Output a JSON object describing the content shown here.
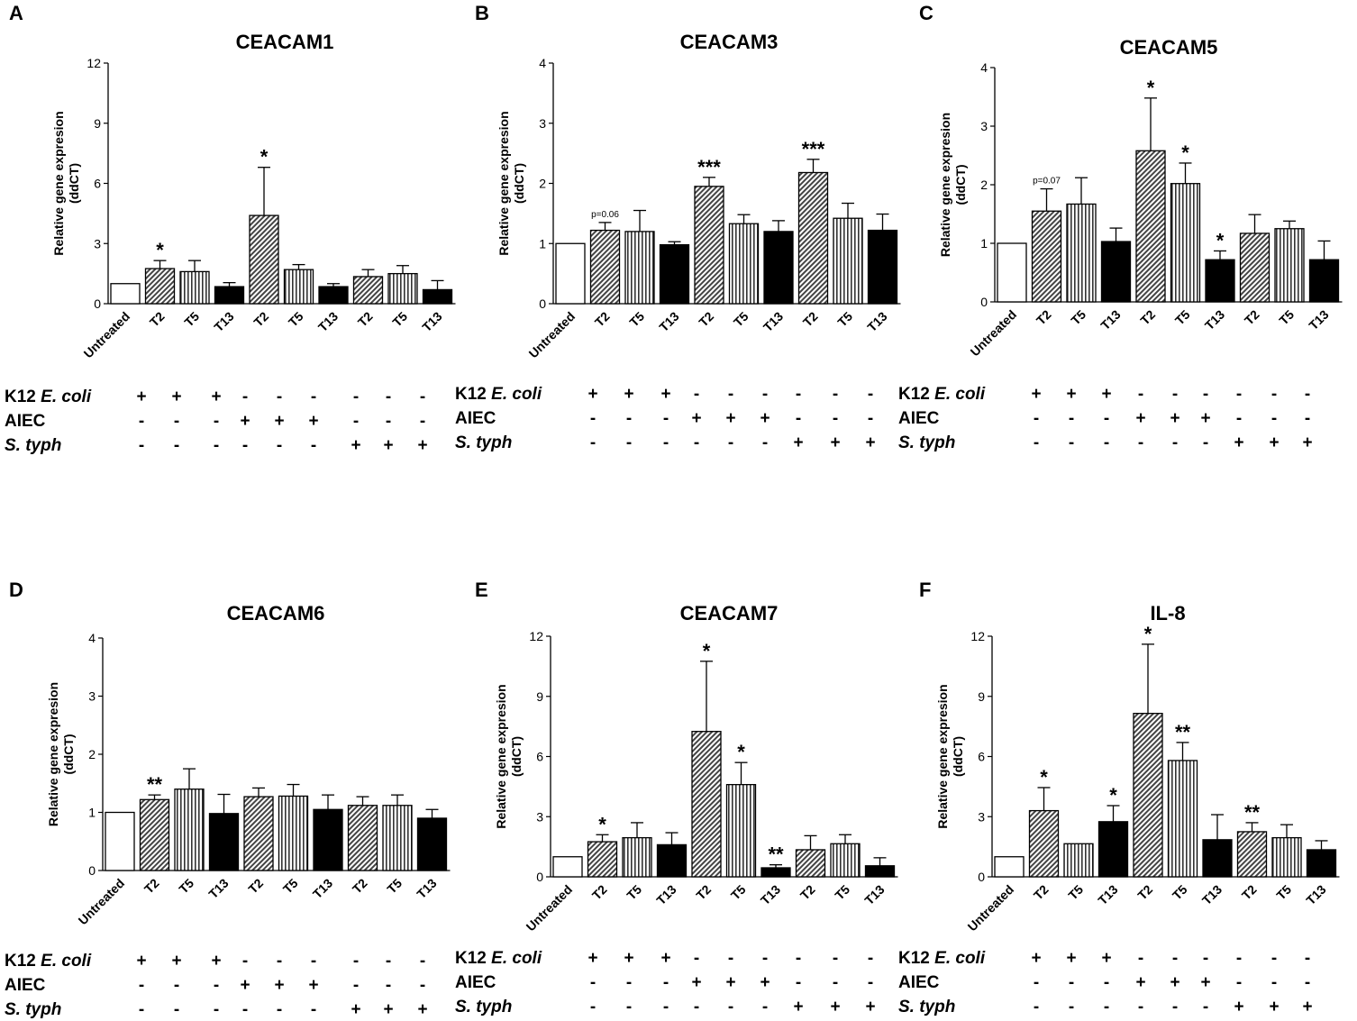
{
  "panel_labels": [
    "A",
    "B",
    "C",
    "D",
    "E",
    "F"
  ],
  "y_axis_label": [
    "Relative gene expresion",
    "(ddCT)"
  ],
  "treatment_rows": [
    {
      "name": "K12",
      "italic": "E. coli"
    },
    {
      "name": "AIEC",
      "italic": ""
    },
    {
      "name": "",
      "italic": "S. typh"
    }
  ],
  "treatment_matrix": [
    [
      "+",
      "+",
      "+",
      "-",
      "-",
      "-",
      "-",
      "-",
      "-"
    ],
    [
      "-",
      "-",
      "-",
      "+",
      "+",
      "+",
      "-",
      "-",
      "-"
    ],
    [
      "-",
      "-",
      "-",
      "-",
      "-",
      "-",
      "+",
      "+",
      "+"
    ]
  ],
  "colors": {
    "solid": "#000000",
    "empty": "#ffffff",
    "bar_stroke": "#000000"
  },
  "chart_data": [
    {
      "panel": "A",
      "type": "bar",
      "title": "CEACAM1",
      "categories": [
        "Untreated",
        "T2",
        "T5",
        "T13",
        "T2",
        "T5",
        "T13",
        "T2",
        "T5",
        "T13"
      ],
      "fills": [
        "empty",
        "hatch",
        "vstripe",
        "solid",
        "hatch",
        "vstripe",
        "solid",
        "hatch",
        "vstripe",
        "solid"
      ],
      "values": [
        1.0,
        1.75,
        1.6,
        0.85,
        4.4,
        1.7,
        0.85,
        1.35,
        1.5,
        0.7
      ],
      "errors": [
        0,
        0.4,
        0.55,
        0.2,
        2.4,
        0.25,
        0.15,
        0.35,
        0.4,
        0.45
      ],
      "annotations": [
        "",
        "*",
        "",
        "",
        "*",
        "",
        "",
        "",
        "",
        ""
      ],
      "ylim": [
        0,
        12
      ],
      "yticks": [
        "0",
        "3",
        "6",
        "9",
        "12"
      ]
    },
    {
      "panel": "B",
      "type": "bar",
      "title": "CEACAM3",
      "categories": [
        "Untreated",
        "T2",
        "T5",
        "T13",
        "T2",
        "T5",
        "T13",
        "T2",
        "T5",
        "T13"
      ],
      "fills": [
        "empty",
        "hatch",
        "vstripe",
        "solid",
        "hatch",
        "vstripe",
        "solid",
        "hatch",
        "vstripe",
        "solid"
      ],
      "values": [
        1.0,
        1.22,
        1.2,
        0.98,
        1.95,
        1.33,
        1.2,
        2.18,
        1.42,
        1.22
      ],
      "errors": [
        0,
        0.13,
        0.35,
        0.05,
        0.15,
        0.15,
        0.18,
        0.22,
        0.25,
        0.27
      ],
      "annotations": [
        "",
        "p=0.06",
        "",
        "",
        "***",
        "",
        "",
        "***",
        "",
        ""
      ],
      "ylim": [
        0,
        4
      ],
      "yticks": [
        "0",
        "1",
        "2",
        "3",
        "4"
      ]
    },
    {
      "panel": "C",
      "type": "bar",
      "title": "CEACAM5",
      "categories": [
        "Untreated",
        "T2",
        "T5",
        "T13",
        "T2",
        "T5",
        "T13",
        "T2",
        "T5",
        "T13"
      ],
      "fills": [
        "empty",
        "hatch",
        "vstripe",
        "solid",
        "hatch",
        "vstripe",
        "solid",
        "hatch",
        "vstripe",
        "solid"
      ],
      "values": [
        1.0,
        1.55,
        1.67,
        1.03,
        2.58,
        2.02,
        0.72,
        1.17,
        1.25,
        0.72
      ],
      "errors": [
        0,
        0.38,
        0.45,
        0.23,
        0.9,
        0.35,
        0.15,
        0.32,
        0.13,
        0.32
      ],
      "annotations": [
        "",
        "p=0.07",
        "",
        "",
        "*",
        "*",
        "*",
        "",
        "",
        ""
      ],
      "ylim": [
        0,
        4
      ],
      "yticks": [
        "0",
        "1",
        "2",
        "3",
        "4"
      ]
    },
    {
      "panel": "D",
      "type": "bar",
      "title": "CEACAM6",
      "categories": [
        "Untreated",
        "T2",
        "T5",
        "T13",
        "T2",
        "T5",
        "T13",
        "T2",
        "T5",
        "T13"
      ],
      "fills": [
        "empty",
        "hatch",
        "vstripe",
        "solid",
        "hatch",
        "vstripe",
        "solid",
        "hatch",
        "vstripe",
        "solid"
      ],
      "values": [
        1.0,
        1.22,
        1.4,
        0.98,
        1.27,
        1.28,
        1.05,
        1.12,
        1.12,
        0.9
      ],
      "errors": [
        0,
        0.08,
        0.35,
        0.33,
        0.15,
        0.2,
        0.25,
        0.15,
        0.18,
        0.15
      ],
      "annotations": [
        "",
        "**",
        "",
        "",
        "",
        "",
        "",
        "",
        "",
        ""
      ],
      "ylim": [
        0,
        4
      ],
      "yticks": [
        "0",
        "1",
        "2",
        "3",
        "4"
      ]
    },
    {
      "panel": "E",
      "type": "bar",
      "title": "CEACAM7",
      "categories": [
        "Untreated",
        "T2",
        "T5",
        "T13",
        "T2",
        "T5",
        "T13",
        "T2",
        "T5",
        "T13"
      ],
      "fills": [
        "empty",
        "hatch",
        "vstripe",
        "solid",
        "hatch",
        "vstripe",
        "solid",
        "hatch",
        "vstripe",
        "solid"
      ],
      "values": [
        1.0,
        1.75,
        1.95,
        1.6,
        7.25,
        4.6,
        0.45,
        1.35,
        1.65,
        0.55
      ],
      "errors": [
        0,
        0.35,
        0.75,
        0.6,
        3.5,
        1.1,
        0.15,
        0.7,
        0.45,
        0.4
      ],
      "annotations": [
        "",
        "*",
        "",
        "",
        "*",
        "*",
        "**",
        "",
        "",
        ""
      ],
      "ylim": [
        0,
        12
      ],
      "yticks": [
        "0",
        "3",
        "6",
        "9",
        "12"
      ]
    },
    {
      "panel": "F",
      "type": "bar",
      "title": "IL-8",
      "categories": [
        "Untreated",
        "T2",
        "T5",
        "T13",
        "T2",
        "T5",
        "T13",
        "T2",
        "T5",
        "T13"
      ],
      "fills": [
        "empty",
        "hatch",
        "vstripe",
        "solid",
        "hatch",
        "vstripe",
        "solid",
        "hatch",
        "vstripe",
        "solid"
      ],
      "values": [
        1.0,
        3.3,
        1.65,
        2.75,
        8.15,
        5.8,
        1.85,
        2.25,
        1.95,
        1.35
      ],
      "errors": [
        0,
        1.15,
        0,
        0.8,
        3.45,
        0.9,
        1.25,
        0.45,
        0.65,
        0.45
      ],
      "annotations": [
        "",
        "*",
        "",
        "*",
        "*",
        "**",
        "",
        "**",
        "",
        ""
      ],
      "ylim": [
        0,
        12
      ],
      "yticks": [
        "0",
        "3",
        "6",
        "9",
        "12"
      ]
    }
  ]
}
